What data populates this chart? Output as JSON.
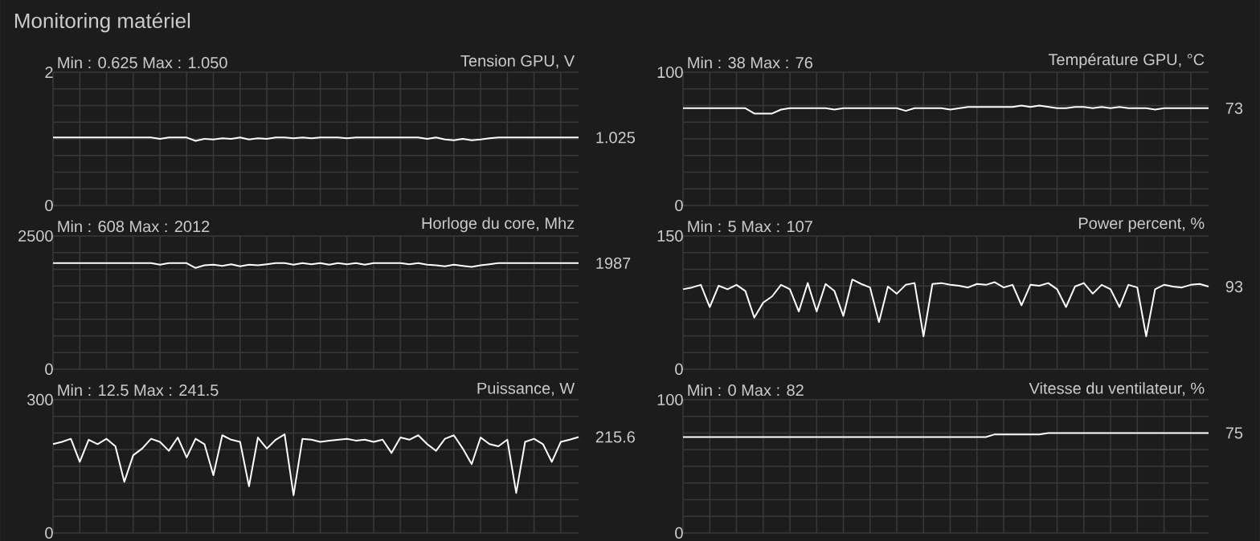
{
  "chart_data": [
    {
      "type": "other",
      "title": "Monitoring matériel"
    },
    {
      "type": "line",
      "title": "Tension GPU, V",
      "categories": [
        null,
        null,
        null,
        null,
        null,
        null,
        null,
        null,
        null,
        null,
        null,
        null,
        null,
        null,
        null,
        null,
        null,
        null,
        null,
        null,
        null,
        null,
        null,
        null,
        null,
        null,
        null,
        null,
        null,
        null,
        null,
        null,
        null,
        null,
        null,
        null,
        null,
        null,
        null,
        null,
        null,
        null,
        null,
        null,
        null,
        null,
        null,
        null,
        null,
        null,
        null,
        null,
        null,
        null,
        null,
        null,
        null,
        null,
        null,
        null
      ],
      "tick_labels": "y",
      "grid": true,
      "ylim": [
        0,
        2
      ],
      "yticks": [
        0,
        2
      ],
      "color": "#ffffff",
      "values": [
        1.02,
        1.02,
        1.02,
        1.02,
        1.02,
        1.02,
        1.02,
        1.02,
        1.02,
        1.02,
        1.02,
        1.02,
        1.0,
        1.02,
        1.02,
        1.02,
        0.97,
        1.0,
        0.99,
        1.01,
        1.0,
        1.02,
        0.99,
        1.01,
        1.0,
        1.02,
        1.02,
        1.01,
        1.02,
        1.01,
        1.02,
        1.02,
        1.02,
        1.01,
        1.02,
        1.02,
        1.02,
        1.02,
        1.02,
        1.02,
        1.02,
        1.02,
        1.0,
        1.02,
        0.99,
        0.98,
        1.0,
        0.98,
        0.99,
        1.01,
        1.02,
        1.02,
        1.02,
        1.02,
        1.02,
        1.02,
        1.02,
        1.02,
        1.02,
        1.02
      ],
      "annotations": [
        "Min : 0.625   Max : 1.050",
        "1.025"
      ]
    },
    {
      "type": "line",
      "title": "Température GPU, °C",
      "categories": [
        null,
        null,
        null,
        null,
        null,
        null,
        null,
        null,
        null,
        null,
        null,
        null,
        null,
        null,
        null,
        null,
        null,
        null,
        null,
        null,
        null,
        null,
        null,
        null,
        null,
        null,
        null,
        null,
        null,
        null,
        null,
        null,
        null,
        null,
        null,
        null,
        null,
        null,
        null,
        null,
        null,
        null,
        null,
        null,
        null,
        null,
        null,
        null,
        null,
        null,
        null,
        null,
        null,
        null,
        null,
        null,
        null,
        null,
        null,
        null
      ],
      "tick_labels": "y",
      "grid": true,
      "ylim": [
        0,
        100
      ],
      "yticks": [
        0,
        100
      ],
      "color": "#ffffff",
      "values": [
        73,
        73,
        73,
        73,
        73,
        73,
        73,
        73,
        69,
        69,
        69,
        72,
        73,
        73,
        73,
        73,
        73,
        72,
        73,
        73,
        73,
        73,
        73,
        73,
        73,
        71,
        73,
        73,
        73,
        73,
        72,
        73,
        74,
        74,
        74,
        74,
        74,
        74,
        75,
        74,
        75,
        74,
        73,
        73,
        74,
        74,
        73,
        74,
        73,
        74,
        73,
        73,
        73,
        72,
        73,
        73,
        73,
        73,
        73,
        73
      ],
      "annotations": [
        "Min : 38   Max : 76",
        "73"
      ]
    },
    {
      "type": "line",
      "title": "Horloge du core, Mhz",
      "categories": [
        null,
        null,
        null,
        null,
        null,
        null,
        null,
        null,
        null,
        null,
        null,
        null,
        null,
        null,
        null,
        null,
        null,
        null,
        null,
        null,
        null,
        null,
        null,
        null,
        null,
        null,
        null,
        null,
        null,
        null,
        null,
        null,
        null,
        null,
        null,
        null,
        null,
        null,
        null,
        null,
        null,
        null,
        null,
        null,
        null,
        null,
        null,
        null,
        null,
        null,
        null,
        null,
        null,
        null,
        null,
        null,
        null,
        null,
        null,
        null
      ],
      "tick_labels": "y",
      "grid": true,
      "ylim": [
        0,
        2500
      ],
      "yticks": [
        0,
        2500
      ],
      "color": "#ffffff",
      "values": [
        1990,
        1990,
        1990,
        1990,
        1990,
        1990,
        1990,
        1990,
        1990,
        1990,
        1990,
        1990,
        1960,
        1990,
        1990,
        1990,
        1900,
        1950,
        1960,
        1940,
        1970,
        1930,
        1960,
        1950,
        1970,
        1990,
        1990,
        1960,
        1990,
        1970,
        1990,
        1960,
        1990,
        1970,
        1990,
        1960,
        1990,
        1990,
        1990,
        1990,
        1970,
        1990,
        1960,
        1950,
        1930,
        1960,
        1940,
        1920,
        1950,
        1970,
        1990,
        1990,
        1990,
        1990,
        1990,
        1990,
        1990,
        1990,
        1990,
        1990
      ],
      "annotations": [
        "Min : 608   Max : 2012",
        "1987"
      ]
    },
    {
      "type": "line",
      "title": "Power percent, %",
      "categories": [
        null,
        null,
        null,
        null,
        null,
        null,
        null,
        null,
        null,
        null,
        null,
        null,
        null,
        null,
        null,
        null,
        null,
        null,
        null,
        null,
        null,
        null,
        null,
        null,
        null,
        null,
        null,
        null,
        null,
        null,
        null,
        null,
        null,
        null,
        null,
        null,
        null,
        null,
        null,
        null,
        null,
        null,
        null,
        null,
        null,
        null,
        null,
        null,
        null,
        null,
        null,
        null,
        null,
        null,
        null,
        null,
        null,
        null,
        null,
        null
      ],
      "tick_labels": "y",
      "grid": true,
      "ylim": [
        0,
        150
      ],
      "yticks": [
        0,
        150
      ],
      "color": "#ffffff",
      "values": [
        90,
        92,
        95,
        70,
        94,
        90,
        95,
        88,
        58,
        75,
        82,
        95,
        90,
        65,
        97,
        65,
        96,
        88,
        60,
        101,
        96,
        92,
        53,
        93,
        85,
        95,
        97,
        37,
        96,
        97,
        95,
        94,
        92,
        96,
        95,
        98,
        92,
        95,
        72,
        95,
        94,
        97,
        90,
        70,
        93,
        97,
        85,
        95,
        90,
        70,
        95,
        92,
        37,
        90,
        95,
        93,
        92,
        95,
        96,
        93
      ],
      "annotations": [
        "Min : 5   Max : 107",
        "93"
      ]
    },
    {
      "type": "line",
      "title": "Puissance, W",
      "categories": [
        null,
        null,
        null,
        null,
        null,
        null,
        null,
        null,
        null,
        null,
        null,
        null,
        null,
        null,
        null,
        null,
        null,
        null,
        null,
        null,
        null,
        null,
        null,
        null,
        null,
        null,
        null,
        null,
        null,
        null,
        null,
        null,
        null,
        null,
        null,
        null,
        null,
        null,
        null,
        null,
        null,
        null,
        null,
        null,
        null,
        null,
        null,
        null,
        null,
        null,
        null,
        null,
        null,
        null,
        null,
        null,
        null,
        null,
        null,
        null
      ],
      "tick_labels": "y",
      "grid": true,
      "ylim": [
        0,
        300
      ],
      "yticks": [
        0,
        300
      ],
      "color": "#ffffff",
      "values": [
        200,
        205,
        212,
        160,
        210,
        200,
        212,
        195,
        115,
        175,
        190,
        212,
        205,
        185,
        215,
        170,
        212,
        200,
        130,
        220,
        210,
        205,
        105,
        215,
        190,
        210,
        222,
        85,
        212,
        210,
        205,
        208,
        210,
        212,
        208,
        210,
        205,
        210,
        180,
        215,
        210,
        220,
        200,
        185,
        212,
        220,
        190,
        155,
        215,
        200,
        195,
        210,
        90,
        205,
        212,
        200,
        160,
        205,
        210,
        216
      ],
      "annotations": [
        "Min : 12.5   Max : 241.5",
        "215.6"
      ]
    },
    {
      "type": "line",
      "title": "Vitesse du ventilateur, %",
      "categories": [
        null,
        null,
        null,
        null,
        null,
        null,
        null,
        null,
        null,
        null,
        null,
        null,
        null,
        null,
        null,
        null,
        null,
        null,
        null,
        null,
        null,
        null,
        null,
        null,
        null,
        null,
        null,
        null,
        null,
        null,
        null,
        null,
        null,
        null,
        null,
        null,
        null,
        null,
        null,
        null,
        null,
        null,
        null,
        null,
        null,
        null,
        null,
        null,
        null,
        null,
        null,
        null,
        null,
        null,
        null,
        null,
        null,
        null,
        null,
        null
      ],
      "tick_labels": "y",
      "grid": true,
      "ylim": [
        0,
        100
      ],
      "yticks": [
        0,
        100
      ],
      "color": "#ffffff",
      "values": [
        72,
        72,
        72,
        72,
        72,
        72,
        72,
        72,
        72,
        72,
        72,
        72,
        72,
        72,
        72,
        72,
        72,
        72,
        72,
        72,
        72,
        72,
        72,
        72,
        72,
        72,
        72,
        72,
        72,
        72,
        72,
        72,
        72,
        72,
        72,
        74,
        74,
        74,
        74,
        74,
        74,
        75,
        75,
        75,
        75,
        75,
        75,
        75,
        75,
        75,
        75,
        75,
        75,
        75,
        75,
        75,
        75,
        75,
        75,
        75
      ],
      "annotations": [
        "Min : 0   Max : 82",
        "75"
      ]
    }
  ]
}
